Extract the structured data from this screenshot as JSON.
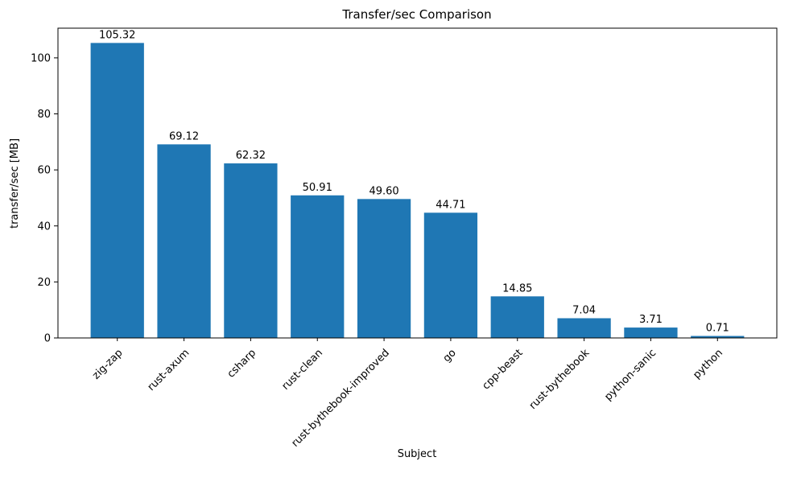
{
  "chart_data": {
    "type": "bar",
    "title": "Transfer/sec Comparison",
    "xlabel": "Subject",
    "ylabel": "transfer/sec [MB]",
    "categories": [
      "zig-zap",
      "rust-axum",
      "csharp",
      "rust-clean",
      "rust-bythebook-improved",
      "go",
      "cpp-beast",
      "rust-bythebook",
      "python-sanic",
      "python"
    ],
    "values": [
      105.32,
      69.12,
      62.32,
      50.91,
      49.6,
      44.71,
      14.85,
      7.04,
      3.71,
      0.71
    ],
    "value_labels": [
      "105.32",
      "69.12",
      "62.32",
      "50.91",
      "49.60",
      "44.71",
      "14.85",
      "7.04",
      "3.71",
      "0.71"
    ],
    "bar_color": "#1f77b4",
    "ylim": [
      0,
      110.6
    ],
    "xlim": [
      -0.89,
      9.89
    ],
    "yticks": [
      0,
      20,
      40,
      60,
      80,
      100
    ],
    "grid": false,
    "legend": "none",
    "bar_width_fraction": 0.8
  }
}
